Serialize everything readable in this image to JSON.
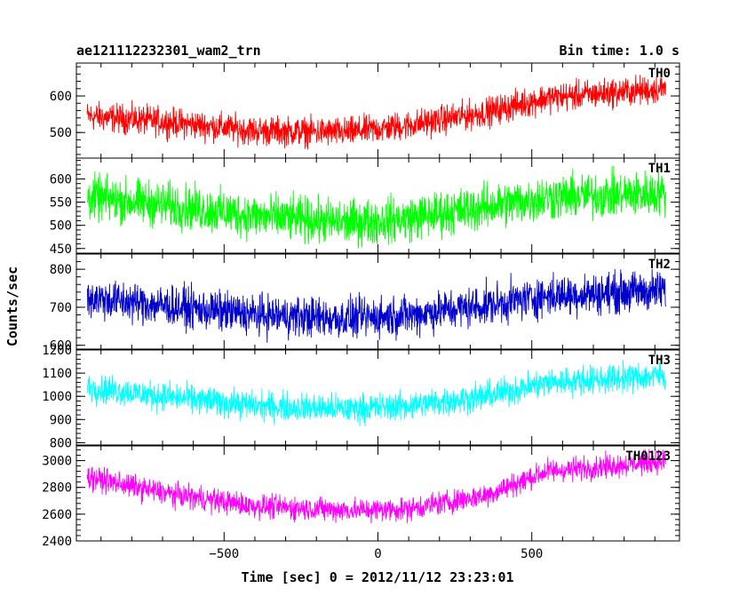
{
  "header": {
    "title": "ae121112232301_wam2_trn",
    "bin_time": "Bin time: 1.0 s"
  },
  "axes": {
    "xlabel": "Time [sec] 0 = 2012/11/12 23:23:01",
    "ylabel": "Counts/sec"
  },
  "chart_data": {
    "type": "line",
    "title": "ae121112232301_wam2_trn",
    "xlabel": "Time [sec] 0 = 2012/11/12 23:23:01",
    "ylabel": "Counts/sec",
    "xlim": [
      -980,
      980
    ],
    "x_ticks": [
      -500,
      0,
      500
    ],
    "x_tick_labels": [
      "−500",
      "0",
      "500"
    ],
    "x_range_data": [
      -945,
      935
    ],
    "panels": [
      {
        "name": "TH0",
        "color": "#ff0000",
        "ylim": [
          430,
          690
        ],
        "y_ticks": [
          500,
          600
        ],
        "trend": [
          [
            -945,
            545
          ],
          [
            -700,
            530
          ],
          [
            -400,
            505
          ],
          [
            -100,
            500
          ],
          [
            100,
            520
          ],
          [
            350,
            555
          ],
          [
            550,
            595
          ],
          [
            935,
            620
          ]
        ],
        "noise_halfwidth": 45
      },
      {
        "name": "TH1",
        "color": "#00ff00",
        "ylim": [
          440,
          645
        ],
        "y_ticks": [
          450,
          500,
          550,
          600
        ],
        "trend": [
          [
            -945,
            560
          ],
          [
            -700,
            545
          ],
          [
            -400,
            520
          ],
          [
            -100,
            505
          ],
          [
            100,
            515
          ],
          [
            350,
            540
          ],
          [
            550,
            560
          ],
          [
            935,
            570
          ]
        ],
        "noise_halfwidth": 55
      },
      {
        "name": "TH2",
        "color": "#0000cc",
        "ylim": [
          590,
          840
        ],
        "y_ticks": [
          600,
          700,
          800
        ],
        "trend": [
          [
            -945,
            725
          ],
          [
            -700,
            705
          ],
          [
            -400,
            680
          ],
          [
            -100,
            670
          ],
          [
            100,
            680
          ],
          [
            350,
            705
          ],
          [
            550,
            730
          ],
          [
            935,
            745
          ]
        ],
        "noise_halfwidth": 60
      },
      {
        "name": "TH3",
        "color": "#00ffff",
        "ylim": [
          790,
          1200
        ],
        "y_ticks": [
          800,
          900,
          1000,
          1100,
          1200
        ],
        "trend": [
          [
            -945,
            1040
          ],
          [
            -700,
            1000
          ],
          [
            -400,
            960
          ],
          [
            -100,
            945
          ],
          [
            100,
            960
          ],
          [
            350,
            1000
          ],
          [
            550,
            1060
          ],
          [
            935,
            1090
          ]
        ],
        "noise_halfwidth": 70
      },
      {
        "name": "TH0123",
        "color": "#ff00ff",
        "ylim": [
          2400,
          3110
        ],
        "y_ticks": [
          2400,
          2600,
          2800,
          3000
        ],
        "trend": [
          [
            -945,
            2880
          ],
          [
            -700,
            2760
          ],
          [
            -400,
            2660
          ],
          [
            -100,
            2630
          ],
          [
            100,
            2640
          ],
          [
            350,
            2740
          ],
          [
            550,
            2920
          ],
          [
            935,
            3000
          ]
        ],
        "noise_halfwidth": 100
      }
    ]
  }
}
